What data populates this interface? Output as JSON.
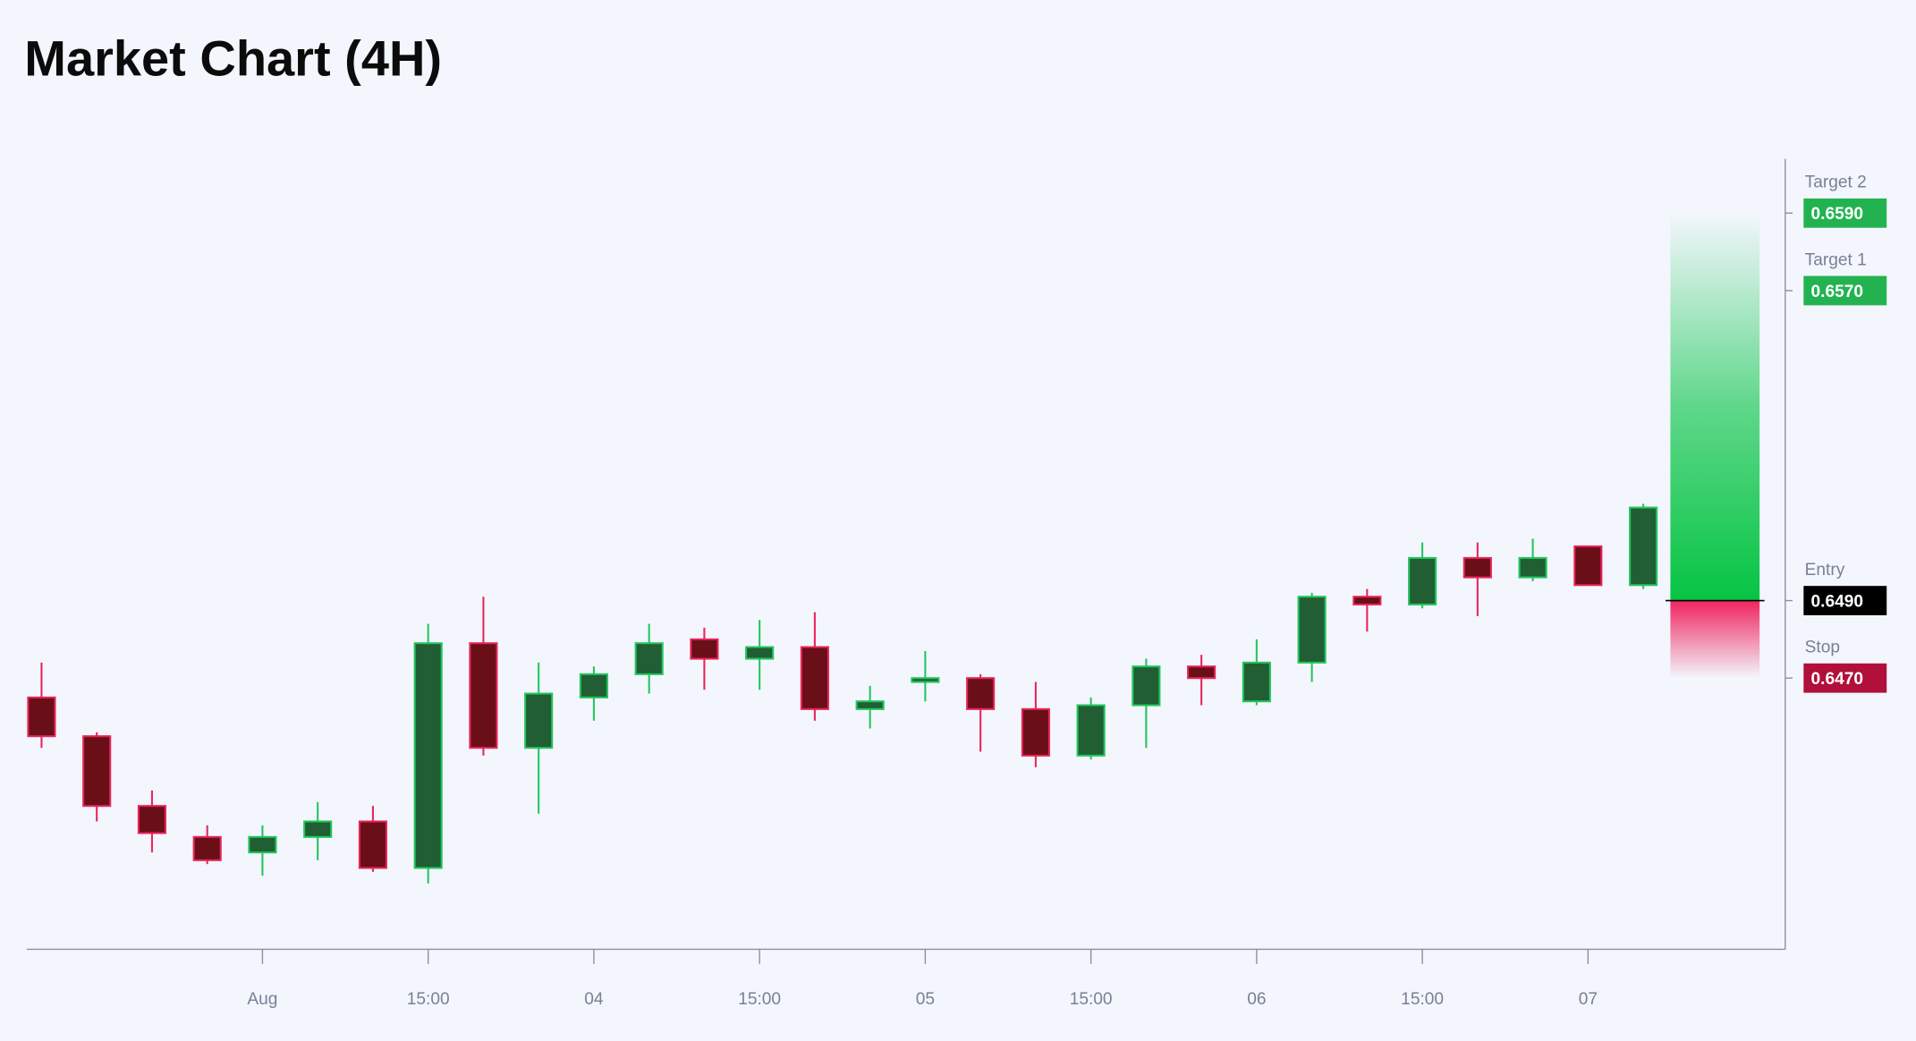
{
  "chart_data": {
    "type": "candlestick",
    "title": "Market Chart (4H)",
    "categories": [
      null,
      null,
      null,
      null,
      "Aug",
      null,
      null,
      "15:00",
      null,
      null,
      "04",
      null,
      null,
      "15:00",
      null,
      null,
      "05",
      null,
      null,
      "15:00",
      null,
      null,
      "06",
      null,
      null,
      "15:00",
      null,
      null,
      "07",
      null
    ],
    "open": [
      0.6465,
      0.6455,
      0.6437,
      0.6429,
      0.6425,
      0.6429,
      0.6433,
      0.6421,
      0.6479,
      0.6452,
      0.6465,
      0.6471,
      0.648,
      0.6475,
      0.6478,
      0.6462,
      0.6469,
      0.647,
      0.6462,
      0.645,
      0.6463,
      0.6473,
      0.6464,
      0.6474,
      0.6491,
      0.6489,
      0.6501,
      0.6496,
      0.6504,
      0.6494
    ],
    "high": [
      0.6474,
      0.6456,
      0.6441,
      0.6432,
      0.6432,
      0.6438,
      0.6437,
      0.6484,
      0.6491,
      0.6474,
      0.6473,
      0.6484,
      0.6483,
      0.6485,
      0.6487,
      0.6468,
      0.6477,
      0.6471,
      0.6469,
      0.6465,
      0.6475,
      0.6476,
      0.648,
      0.6492,
      0.6493,
      0.6505,
      0.6505,
      0.6506,
      0.6504,
      0.6515
    ],
    "low": [
      0.6452,
      0.6433,
      0.6425,
      0.6422,
      0.6419,
      0.6423,
      0.642,
      0.6417,
      0.645,
      0.6435,
      0.6459,
      0.6466,
      0.6467,
      0.6467,
      0.6459,
      0.6457,
      0.6464,
      0.6451,
      0.6447,
      0.6449,
      0.6452,
      0.6463,
      0.6463,
      0.6469,
      0.6482,
      0.6488,
      0.6486,
      0.6495,
      0.6494,
      0.6493
    ],
    "close": [
      0.6455,
      0.6437,
      0.643,
      0.6423,
      0.6429,
      0.6433,
      0.6421,
      0.6479,
      0.6452,
      0.6466,
      0.6471,
      0.6479,
      0.6475,
      0.6478,
      0.6462,
      0.6464,
      0.647,
      0.6462,
      0.645,
      0.6463,
      0.6473,
      0.647,
      0.6474,
      0.6491,
      0.6489,
      0.6501,
      0.6496,
      0.6501,
      0.6494,
      0.6514
    ],
    "up_color": "#22c55e",
    "up_fill": "#215e33",
    "down_color": "#e8245a",
    "down_fill": "#6a0f17",
    "ylim": [
      0.64,
      0.6604
    ],
    "levels": [
      {
        "name": "Target 2",
        "value": 0.659,
        "label": "0.6590",
        "color": "#22b350"
      },
      {
        "name": "Target 1",
        "value": 0.657,
        "label": "0.6570",
        "color": "#22b350"
      },
      {
        "name": "Entry",
        "value": 0.649,
        "label": "0.6490",
        "color": "#000000"
      },
      {
        "name": "Stop",
        "value": 0.647,
        "label": "0.6470",
        "color": "#b0103a"
      }
    ]
  }
}
